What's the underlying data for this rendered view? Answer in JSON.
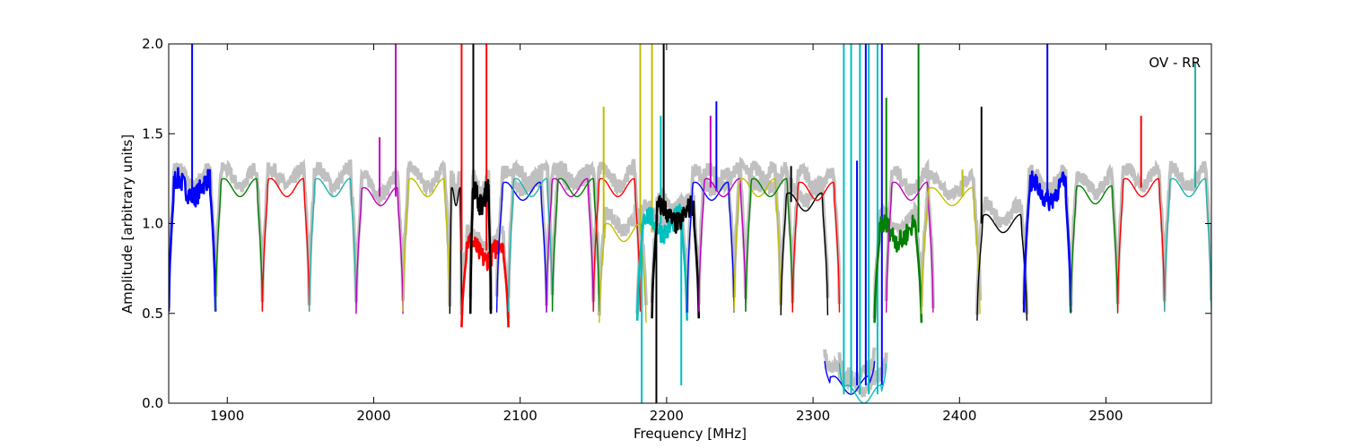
{
  "chart_data": {
    "type": "line",
    "title": "",
    "xlabel": "Frequency [MHz]",
    "ylabel": "Amplitude [arbitrary units]",
    "xlim": [
      1860,
      2572
    ],
    "ylim": [
      0.0,
      2.0
    ],
    "xticks": [
      1900,
      2000,
      2100,
      2200,
      2300,
      2400,
      2500
    ],
    "xtick_labels": [
      "1900",
      "2000",
      "2100",
      "2200",
      "2300",
      "2400",
      "2500"
    ],
    "yticks": [
      0.0,
      0.5,
      1.0,
      1.5,
      2.0
    ],
    "ytick_labels": [
      "0.0",
      "0.5",
      "1.0",
      "1.5",
      "2.0"
    ],
    "grid": false,
    "annotation": "OV - RR",
    "background_color": "#c0c0c0",
    "subbands": [
      {
        "start": 1860,
        "end": 1892,
        "color": "#0000ff",
        "level": 1.2,
        "thick": true,
        "spikes": [
          [
            1876,
            2.0
          ]
        ]
      },
      {
        "start": 1892,
        "end": 1924,
        "color": "#008000",
        "level": 1.2,
        "spikes": []
      },
      {
        "start": 1924,
        "end": 1956,
        "color": "#ff0000",
        "level": 1.2,
        "spikes": []
      },
      {
        "start": 1956,
        "end": 1988,
        "color": "#20b2aa",
        "level": 1.2,
        "spikes": []
      },
      {
        "start": 1988,
        "end": 2020,
        "color": "#bf00bf",
        "level": 1.15,
        "spikes": [
          [
            2004,
            1.48
          ],
          [
            2015,
            2.0
          ]
        ]
      },
      {
        "start": 2020,
        "end": 2052,
        "color": "#bfbf00",
        "level": 1.2,
        "spikes": []
      },
      {
        "start": 2052,
        "end": 2060,
        "color": "#000000",
        "level": 1.15,
        "spikes": []
      },
      {
        "start": 2060,
        "end": 2092,
        "color": "#ff0000",
        "level": 0.85,
        "thick": true,
        "spikes": [
          [
            2060,
            2.0
          ],
          [
            2077,
            2.0
          ]
        ]
      },
      {
        "start": 2066,
        "end": 2080,
        "color": "#000000",
        "level": 1.15,
        "thick": true,
        "spikes": [
          [
            2068,
            2.0
          ]
        ]
      },
      {
        "start": 2084,
        "end": 2118,
        "color": "#0000ff",
        "level": 1.18,
        "spikes": []
      },
      {
        "start": 2092,
        "end": 2122,
        "color": "#20b2aa",
        "level": 1.2,
        "spikes": []
      },
      {
        "start": 2118,
        "end": 2150,
        "color": "#bf00bf",
        "level": 1.2,
        "spikes": []
      },
      {
        "start": 2122,
        "end": 2154,
        "color": "#008000",
        "level": 1.2,
        "spikes": []
      },
      {
        "start": 2150,
        "end": 2182,
        "color": "#ff0000",
        "level": 1.2,
        "spikes": []
      },
      {
        "start": 2154,
        "end": 2186,
        "color": "#bfbf00",
        "level": 0.95,
        "spikes": [
          [
            2157,
            1.65
          ],
          [
            2182,
            2.0
          ],
          [
            2190,
            2.0
          ]
        ]
      },
      {
        "start": 2180,
        "end": 2214,
        "color": "#00bfbf",
        "level": 1.0,
        "thick": true,
        "spikes": [
          [
            2183,
            0.0
          ],
          [
            2196,
            1.6
          ],
          [
            2210,
            0.1
          ]
        ]
      },
      {
        "start": 2190,
        "end": 2222,
        "color": "#000000",
        "level": 1.05,
        "thick": true,
        "spikes": [
          [
            2193,
            0.0
          ],
          [
            2198,
            2.0
          ]
        ]
      },
      {
        "start": 2214,
        "end": 2246,
        "color": "#0000ff",
        "level": 1.18,
        "spikes": [
          [
            2234,
            1.68
          ]
        ]
      },
      {
        "start": 2222,
        "end": 2254,
        "color": "#bf00bf",
        "level": 1.2,
        "spikes": [
          [
            2230,
            1.6
          ]
        ]
      },
      {
        "start": 2246,
        "end": 2278,
        "color": "#bfbf00",
        "level": 1.2,
        "spikes": []
      },
      {
        "start": 2254,
        "end": 2286,
        "color": "#008000",
        "level": 1.2,
        "spikes": []
      },
      {
        "start": 2278,
        "end": 2310,
        "color": "#000000",
        "level": 1.12,
        "spikes": [
          [
            2285,
            1.32
          ]
        ]
      },
      {
        "start": 2286,
        "end": 2318,
        "color": "#ff0000",
        "level": 1.18,
        "spikes": []
      },
      {
        "start": 2308,
        "end": 2342,
        "color": "#0000ff",
        "level": 0.1,
        "spikes": [
          [
            2330,
            1.35
          ],
          [
            2336,
            2.0
          ],
          [
            2347,
            2.0
          ]
        ]
      },
      {
        "start": 2318,
        "end": 2350,
        "color": "#00bfbf",
        "level": 0.05,
        "spikes": [
          [
            2321,
            2.0
          ],
          [
            2326,
            2.0
          ],
          [
            2332,
            2.0
          ],
          [
            2338,
            2.0
          ],
          [
            2344,
            2.0
          ]
        ]
      },
      {
        "start": 2342,
        "end": 2374,
        "color": "#008000",
        "level": 0.95,
        "thick": true,
        "spikes": [
          [
            2350,
            1.7
          ],
          [
            2372,
            2.0
          ]
        ]
      },
      {
        "start": 2350,
        "end": 2382,
        "color": "#bf00bf",
        "level": 1.18,
        "spikes": []
      },
      {
        "start": 2374,
        "end": 2414,
        "color": "#bfbf00",
        "level": 1.15,
        "spikes": [
          [
            2402,
            1.3
          ]
        ]
      },
      {
        "start": 2412,
        "end": 2446,
        "color": "#000000",
        "level": 1.0,
        "spikes": [
          [
            2415,
            1.65
          ]
        ]
      },
      {
        "start": 2444,
        "end": 2476,
        "color": "#0000ff",
        "level": 1.18,
        "thick": true,
        "spikes": [
          [
            2460,
            2.0
          ]
        ]
      },
      {
        "start": 2476,
        "end": 2508,
        "color": "#008000",
        "level": 1.16,
        "spikes": []
      },
      {
        "start": 2508,
        "end": 2540,
        "color": "#ff0000",
        "level": 1.2,
        "spikes": [
          [
            2524,
            1.6
          ]
        ]
      },
      {
        "start": 2540,
        "end": 2572,
        "color": "#20b2aa",
        "level": 1.2,
        "spikes": [
          [
            2561,
            1.9
          ]
        ]
      }
    ]
  }
}
